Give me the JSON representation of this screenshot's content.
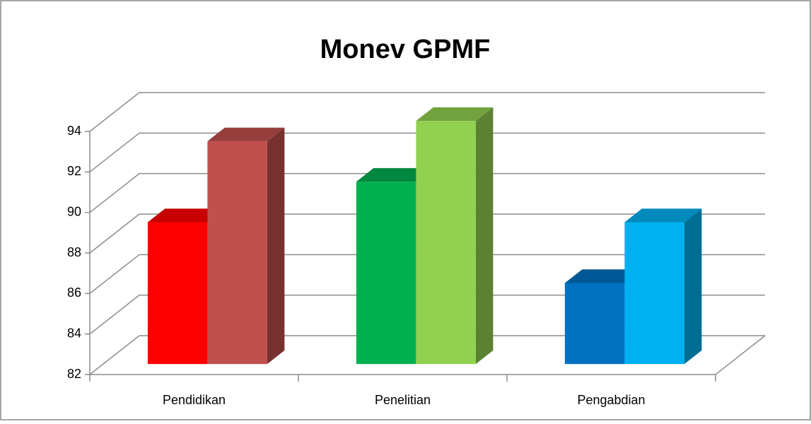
{
  "chart_data": {
    "type": "bar3d",
    "title": "Monev GPMF",
    "categories": [
      "Pendidikan",
      "Penelitian",
      "Pengabdian"
    ],
    "series": [
      {
        "colors": [
          "#ff0000",
          "#00b050",
          "#0070c0"
        ],
        "values": [
          89,
          91,
          86
        ]
      },
      {
        "colors": [
          "#c0504d",
          "#92d050",
          "#00b0f0"
        ],
        "values": [
          93,
          94,
          89
        ]
      }
    ],
    "ylim": [
      82,
      94
    ],
    "yticks": [
      82,
      84,
      86,
      88,
      90,
      92,
      94
    ],
    "grid": true
  }
}
